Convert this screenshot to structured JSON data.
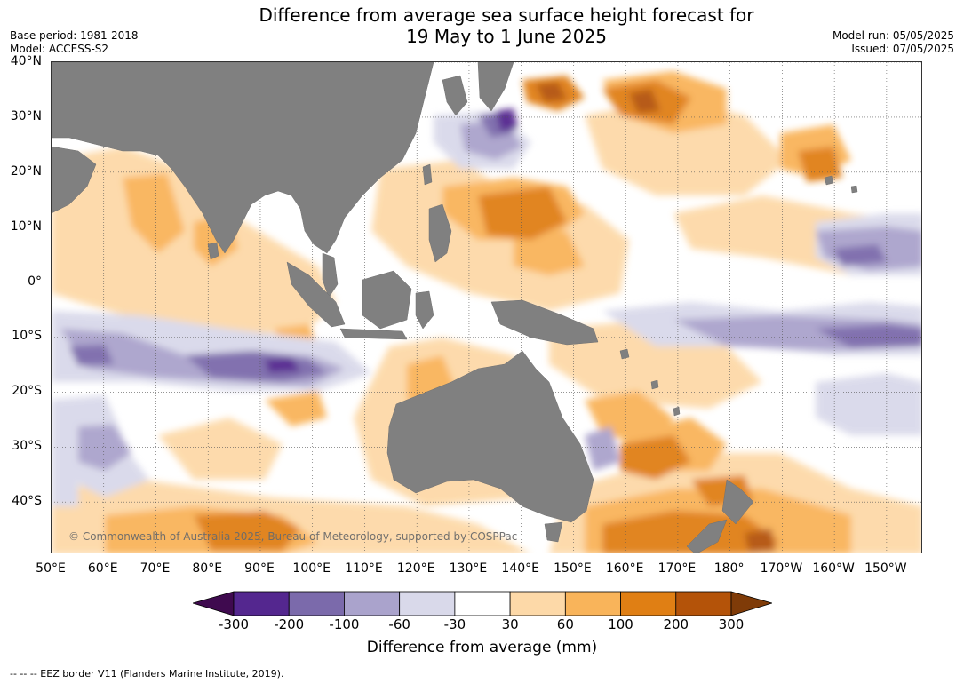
{
  "title_line1": "Difference from average sea surface height forecast for",
  "title_line2": "19 May to 1 June 2025",
  "base_period": "Base period: 1981-2018",
  "model": "Model: ACCESS-S2",
  "model_run": "Model run: 05/05/2025",
  "issued": "Issued: 07/05/2025",
  "copyright": "© Commonwealth of Australia 2025, Bureau of Meteorology, supported by COSPPac",
  "footnote": "-- -- -- EEZ border V11 (Flanders Marine Institute, 2019).",
  "lat_labels": [
    "40°N",
    "30°N",
    "20°N",
    "10°N",
    "0°",
    "10°S",
    "20°S",
    "30°S",
    "40°S"
  ],
  "lat_values": [
    40,
    30,
    20,
    10,
    0,
    -10,
    -20,
    -30,
    -40
  ],
  "lon_labels": [
    "50°E",
    "60°E",
    "70°E",
    "80°E",
    "90°E",
    "100°E",
    "110°E",
    "120°E",
    "130°E",
    "140°E",
    "150°E",
    "160°E",
    "170°E",
    "180°",
    "170°W",
    "160°W",
    "150°W"
  ],
  "lon_values": [
    50,
    60,
    70,
    80,
    90,
    100,
    110,
    120,
    130,
    140,
    150,
    160,
    170,
    180,
    190,
    200,
    210
  ],
  "map_extent": {
    "lon": [
      50,
      217
    ],
    "lat": [
      -49.5,
      40
    ]
  },
  "colorbar": {
    "title": "Difference from average (mm)",
    "tick_labels": [
      "-300",
      "-200",
      "-100",
      "-60",
      "-30",
      "30",
      "60",
      "100",
      "200",
      "300"
    ],
    "bin_colors": [
      "#3f0a4f",
      "#54278f",
      "#7b6aab",
      "#aaa3cc",
      "#d9d9ea",
      "#ffffff",
      "#fdd9a8",
      "#f9b45a",
      "#e07f14",
      "#b45309",
      "#7f3b08"
    ],
    "land_color": "#808080"
  }
}
